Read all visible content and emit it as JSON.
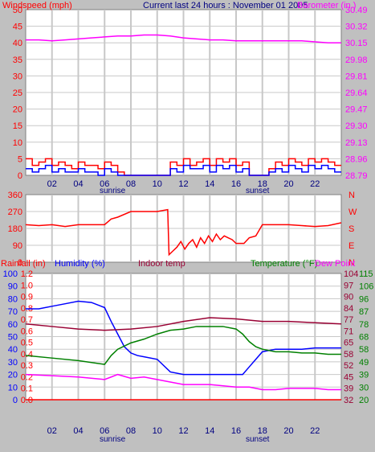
{
  "chart_data": [
    {
      "type": "line",
      "title": "Current last 24 hours : November 01 2005",
      "left_label": "Windspeed (mph)",
      "right_label": "Barometer (in.)",
      "left_ticks": [
        "50",
        "45",
        "40",
        "35",
        "30",
        "25",
        "20",
        "15",
        "10",
        "5",
        "0"
      ],
      "right_ticks": [
        "30.49",
        "30.32",
        "30.15",
        "29.98",
        "29.81",
        "29.64",
        "29.47",
        "29.30",
        "29.13",
        "28.96",
        "28.79"
      ],
      "left_ylim": [
        0,
        50
      ],
      "right_ylim": [
        28.79,
        30.49
      ],
      "xlim": [
        0,
        24
      ],
      "x_ticks": [
        "02",
        "04",
        "06",
        "08",
        "10",
        "12",
        "14",
        "16",
        "18",
        "20",
        "22"
      ],
      "sunrise_label": "sunrise",
      "sunset_label": "sunset",
      "sunrise_hour": 6,
      "sunset_hour": 16.7,
      "series": [
        {
          "key": "barometer",
          "axis": "right",
          "color": "#ff00ff",
          "type": "line",
          "x": [
            0,
            1,
            2,
            3,
            4,
            5,
            6,
            7,
            8,
            9,
            10,
            11,
            12,
            13,
            14,
            15,
            16,
            17,
            18,
            19,
            20,
            21,
            22,
            23,
            24
          ],
          "y": [
            30.18,
            30.18,
            30.17,
            30.18,
            30.19,
            30.2,
            30.21,
            30.22,
            30.22,
            30.23,
            30.23,
            30.22,
            30.2,
            30.19,
            30.18,
            30.18,
            30.17,
            30.17,
            30.17,
            30.17,
            30.17,
            30.17,
            30.16,
            30.15,
            30.15
          ]
        },
        {
          "key": "wind_gust",
          "axis": "left",
          "color": "#ff0000",
          "type": "steps",
          "x": [
            0,
            0.5,
            1,
            1.5,
            2,
            2.5,
            3,
            3.5,
            4,
            4.5,
            5,
            5.5,
            6,
            6.5,
            7,
            7.5,
            8,
            8.5,
            9,
            9.5,
            10,
            10.5,
            11,
            11.5,
            12,
            12.5,
            13,
            13.5,
            14,
            14.5,
            15,
            15.5,
            16,
            16.5,
            17,
            17.5,
            18,
            18.5,
            19,
            19.5,
            20,
            20.5,
            21,
            21.5,
            22,
            22.5,
            23,
            23.5
          ],
          "y": [
            5,
            3,
            4,
            5,
            3,
            4,
            3,
            2,
            4,
            3,
            3,
            2,
            4,
            3,
            1,
            0,
            0,
            0,
            0,
            0,
            0,
            0,
            4,
            3,
            5,
            3,
            4,
            5,
            3,
            5,
            4,
            5,
            3,
            4,
            0,
            0,
            0,
            2,
            4,
            3,
            5,
            4,
            3,
            5,
            4,
            5,
            4,
            3
          ]
        },
        {
          "key": "wind_avg",
          "axis": "left",
          "color": "#0000ff",
          "type": "steps",
          "x": [
            0,
            0.5,
            1,
            1.5,
            2,
            2.5,
            3,
            3.5,
            4,
            4.5,
            5,
            5.5,
            6,
            6.5,
            7,
            7.5,
            8,
            8.5,
            9,
            9.5,
            10,
            10.5,
            11,
            11.5,
            12,
            12.5,
            13,
            13.5,
            14,
            14.5,
            15,
            15.5,
            16,
            16.5,
            17,
            17.5,
            18,
            18.5,
            19,
            19.5,
            20,
            20.5,
            21,
            21.5,
            22,
            22.5,
            23,
            23.5
          ],
          "y": [
            2,
            1,
            2,
            3,
            1,
            2,
            1,
            1,
            2,
            1,
            1,
            0,
            2,
            1,
            0,
            0,
            0,
            0,
            0,
            0,
            0,
            0,
            2,
            1,
            3,
            2,
            2,
            3,
            1,
            3,
            2,
            3,
            1,
            2,
            0,
            0,
            0,
            1,
            2,
            1,
            3,
            2,
            1,
            3,
            2,
            3,
            2,
            1
          ]
        }
      ]
    },
    {
      "type": "line",
      "left_label": "",
      "left_ticks": [
        "360",
        "270",
        "180",
        "90",
        "0"
      ],
      "right_ticks": [
        "N",
        "W",
        "S",
        "E",
        "N"
      ],
      "left_ylim": [
        0,
        360
      ],
      "xlim": [
        0,
        24
      ],
      "x_ticks": [
        "02",
        "04",
        "06",
        "08",
        "10",
        "12",
        "14",
        "16",
        "18",
        "20",
        "22"
      ],
      "sunrise_label": "sunrise",
      "sunset_label": "sunset",
      "series": [
        {
          "key": "wind_direction",
          "axis": "left",
          "color": "#ff0000",
          "type": "line",
          "x": [
            0,
            1,
            2,
            3,
            4,
            5,
            5.5,
            6,
            6.5,
            7,
            8,
            9,
            10,
            10.8,
            10.9,
            11.2,
            11.5,
            11.8,
            12.1,
            12.4,
            12.7,
            13,
            13.3,
            13.6,
            13.9,
            14.2,
            14.5,
            14.8,
            15.1,
            15.4,
            15.7,
            16,
            16.6,
            17,
            17.5,
            18,
            19,
            20,
            21,
            22,
            23,
            24
          ],
          "y": [
            200,
            195,
            200,
            190,
            200,
            200,
            200,
            200,
            230,
            240,
            270,
            270,
            270,
            280,
            40,
            60,
            80,
            110,
            70,
            100,
            120,
            80,
            130,
            100,
            140,
            110,
            150,
            120,
            140,
            130,
            120,
            100,
            100,
            130,
            140,
            200,
            200,
            200,
            195,
            190,
            195,
            210
          ]
        }
      ]
    },
    {
      "type": "line",
      "rainfall_label": "Rainfall (in)",
      "humidity_label": "Humidity (%)",
      "indoor_label": "Indoor temp",
      "temperature_label": "Temperature (°F)",
      "dewpoint_label": "Dew Point",
      "rain_ticks": [
        "1.2",
        "1.0",
        "0.9",
        "0.8",
        "0.7",
        "0.6",
        "0.5",
        "0.4",
        "0.3",
        "0.2",
        "0.1",
        "0.0"
      ],
      "humidity_ticks": [
        "100",
        "90",
        "80",
        "70",
        "60",
        "50",
        "40",
        "30",
        "20",
        "10",
        "0"
      ],
      "temp_ticks": [
        "104",
        "97",
        "90",
        "84",
        "77",
        "71",
        "65",
        "58",
        "52",
        "45",
        "39",
        "32"
      ],
      "dewpoint_ticks": [
        "115",
        "106",
        "96",
        "87",
        "78",
        "68",
        "58",
        "49",
        "39",
        "30",
        "20"
      ],
      "humidity_ylim": [
        0,
        100
      ],
      "rain_ylim": [
        0,
        1.2
      ],
      "xlim": [
        0,
        24
      ],
      "x_ticks": [
        "02",
        "04",
        "06",
        "08",
        "10",
        "12",
        "14",
        "16",
        "18",
        "20",
        "22"
      ],
      "sunrise_label": "sunrise",
      "sunset_label": "sunset",
      "series": [
        {
          "key": "humidity",
          "color": "#0000ff",
          "x": [
            0,
            1,
            2,
            3,
            4,
            5,
            6,
            6.5,
            7,
            7.5,
            8,
            8.5,
            9,
            10,
            11,
            12,
            13,
            14,
            15,
            16,
            16.5,
            17,
            17.5,
            18,
            19,
            20,
            21,
            22,
            23,
            24
          ],
          "y": [
            72,
            72,
            74,
            76,
            78,
            77,
            73,
            62,
            52,
            42,
            37,
            35,
            34,
            32,
            22,
            20,
            20,
            20,
            20,
            20,
            20,
            26,
            32,
            38,
            40,
            40,
            40,
            41,
            41,
            41
          ]
        },
        {
          "key": "indoor_temp",
          "color": "#990033",
          "x": [
            0,
            2,
            4,
            6,
            8,
            10,
            12,
            14,
            16,
            18,
            20,
            22,
            24
          ],
          "y": [
            60,
            58,
            56,
            55,
            56,
            58,
            62,
            65,
            64,
            62,
            62,
            61,
            60
          ]
        },
        {
          "key": "temperature",
          "color": "#008000",
          "x": [
            0,
            2,
            4,
            6,
            6.5,
            7,
            8,
            9,
            10,
            11,
            12,
            13,
            14,
            15,
            16,
            16.5,
            17,
            17.5,
            18,
            19,
            20,
            21,
            22,
            23,
            24
          ],
          "y": [
            35,
            33,
            31,
            28,
            35,
            40,
            45,
            48,
            52,
            55,
            56,
            58,
            58,
            58,
            56,
            52,
            46,
            42,
            40,
            38,
            38,
            37,
            37,
            36,
            36
          ]
        },
        {
          "key": "dewpoint",
          "color": "#ff00ff",
          "x": [
            0,
            2,
            4,
            6,
            6.5,
            7,
            8,
            9,
            10,
            11,
            12,
            14,
            16,
            17,
            18,
            19,
            20,
            21,
            22,
            23,
            24
          ],
          "y": [
            20,
            19,
            18,
            16,
            18,
            20,
            17,
            18,
            16,
            14,
            12,
            12,
            10,
            10,
            8,
            8,
            9,
            9,
            9,
            8,
            8
          ]
        },
        {
          "key": "rainfall",
          "color": "#ff0000",
          "x": [
            0,
            24
          ],
          "y": [
            0,
            0
          ]
        }
      ]
    }
  ]
}
